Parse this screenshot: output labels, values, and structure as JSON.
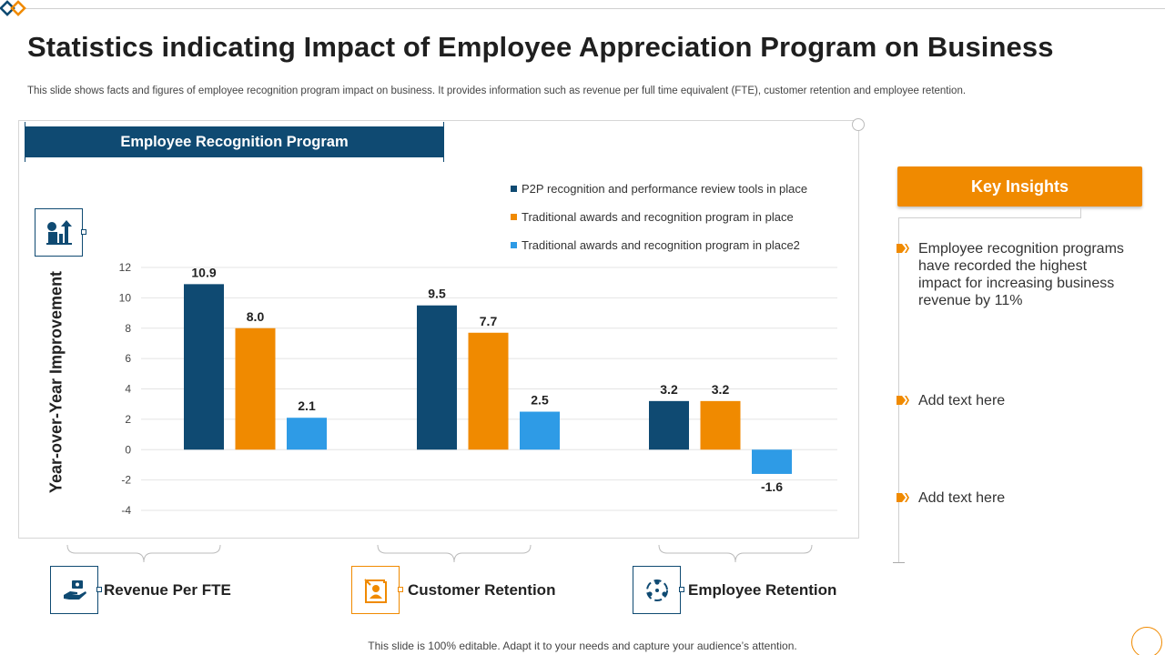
{
  "title": "Statistics indicating Impact of Employee Appreciation Program on Business",
  "subtitle": "This slide shows facts and figures of employee recognition program impact on business. It provides information such as revenue per full time equivalent (FTE),  customer retention and employee retention.",
  "chart_banner": "Employee Recognition Program",
  "colors": {
    "navy": "#0f4a72",
    "orange": "#f08a00",
    "lightblue": "#2e9be6"
  },
  "chart_data": {
    "type": "bar",
    "title": "Employee Recognition Program",
    "xlabel": "",
    "ylabel": "Year-over-Year Improvement",
    "ylim": [
      -4,
      12
    ],
    "yticks": [
      12,
      10,
      8,
      6,
      4,
      2,
      0,
      -2,
      -4
    ],
    "grid": true,
    "legend_position": "top-right",
    "categories": [
      "Revenue Per FTE",
      "Customer Retention",
      "Employee Retention"
    ],
    "series": [
      {
        "name": "P2P recognition and performance review tools in place",
        "color": "#0f4a72",
        "values": [
          10.9,
          9.5,
          3.2
        ],
        "labels": [
          "10.9",
          "9.5",
          "3.2"
        ]
      },
      {
        "name": "Traditional awards and recognition program in place",
        "color": "#f08a00",
        "values": [
          8.0,
          7.7,
          3.2
        ],
        "labels": [
          "8.0",
          "7.7",
          "3.2"
        ]
      },
      {
        "name": "Traditional awards and recognition program in place2",
        "color": "#2e9be6",
        "values": [
          2.1,
          2.5,
          -1.6
        ],
        "labels": [
          "2.1",
          "2.5",
          "-1.6"
        ]
      }
    ]
  },
  "categories_row": [
    {
      "label": "Revenue Per FTE",
      "icon": "money-hand-icon"
    },
    {
      "label": "Customer Retention",
      "icon": "customer-badge-icon"
    },
    {
      "label": "Employee Retention",
      "icon": "people-cycle-icon"
    }
  ],
  "insights": {
    "heading": "Key Insights",
    "items": [
      "Employee recognition programs have recorded the highest impact for increasing business revenue by 11%",
      "Add text here",
      "Add text here"
    ]
  },
  "footer": "This slide is 100% editable. Adapt it to your needs and capture your audience’s attention."
}
